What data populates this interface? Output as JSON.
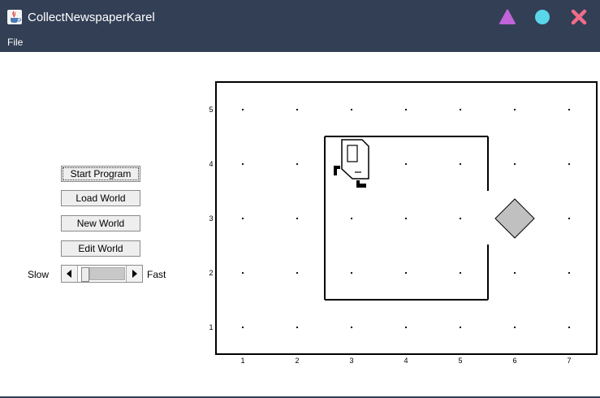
{
  "window": {
    "title": "CollectNewspaperKarel",
    "colors": {
      "titlebar": "#323f55",
      "minimize": "#c064d8",
      "maximize": "#5ad6ea",
      "close": "#f06c8a"
    }
  },
  "menu": {
    "file_label": "File"
  },
  "controls": {
    "start_label": "Start Program",
    "load_label": "Load World",
    "new_label": "New World",
    "edit_label": "Edit World",
    "slow_label": "Slow",
    "fast_label": "Fast",
    "speed": 0.1
  },
  "world": {
    "rows": [
      "1",
      "2",
      "3",
      "4",
      "5"
    ],
    "cols": [
      "1",
      "2",
      "3",
      "4",
      "5",
      "6",
      "7"
    ],
    "karel": {
      "avenue": 3,
      "street": 4,
      "facing": "east"
    },
    "beeper": {
      "avenue": 6,
      "street": 3
    }
  }
}
